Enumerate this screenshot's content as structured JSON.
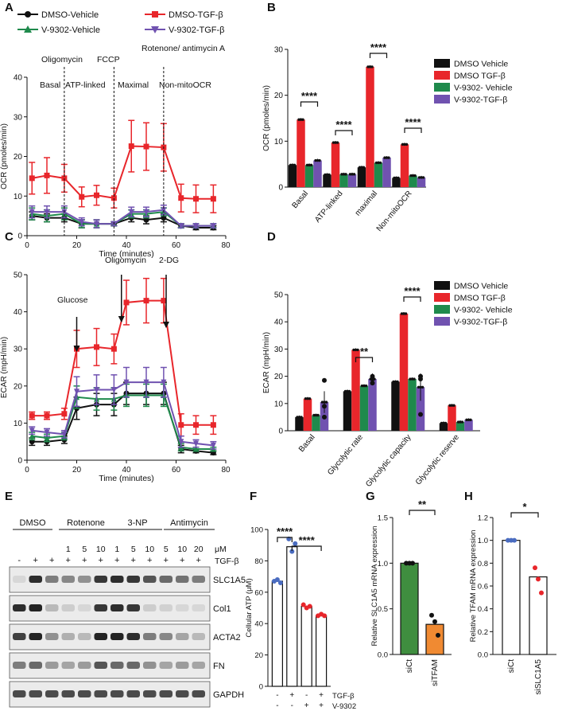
{
  "colors": {
    "black": "#111111",
    "red": "#e8262b",
    "green": "#1f8a4c",
    "purple": "#7052b0",
    "blue": "#4a6cc0",
    "orange": "#f08a32",
    "darkgreen": "#3f8e3f"
  },
  "chart_data": [
    {
      "panel": "A",
      "type": "line",
      "xlabel": "Time (minutes)",
      "ylabel": "OCR (pmoles/min)",
      "ylim": [
        0,
        40
      ],
      "xlim": [
        0,
        80
      ],
      "yticks": [
        0,
        10,
        20,
        30,
        40
      ],
      "xticks": [
        0,
        20,
        40,
        60,
        80
      ],
      "legend": [
        "DMSO-Vehicle",
        "DMSO-TGF-β",
        "V-9302-Vehicle",
        "V-9302-TGF-β"
      ],
      "phases": [
        "Basal",
        "ATP-linked",
        "Maximal",
        "Non-mitoOCR"
      ],
      "injections": [
        "Oligomycin",
        "FCCP",
        "Rotenone/ antimycin A"
      ],
      "x": [
        2,
        8,
        15,
        22,
        28,
        35,
        42,
        48,
        55,
        62,
        68,
        75
      ],
      "series": [
        {
          "name": "DMSO-Vehicle",
          "color": "#111111",
          "marker": "circle",
          "values": [
            5,
            4.5,
            4.5,
            3,
            3,
            3,
            4.5,
            4,
            4.5,
            2.5,
            2,
            2
          ],
          "err": [
            1,
            1,
            1,
            1,
            1,
            0.5,
            1,
            1,
            1,
            0.5,
            0.5,
            0.5
          ]
        },
        {
          "name": "DMSO-TGF-β",
          "color": "#e8262b",
          "marker": "square",
          "values": [
            14.5,
            15.2,
            14.5,
            9.8,
            10.2,
            9.5,
            22.6,
            22.5,
            22.3,
            9.5,
            9.3,
            9.3
          ],
          "err": [
            4,
            4.5,
            3.5,
            2.5,
            2.5,
            2.5,
            6.5,
            6,
            6,
            3.5,
            3.5,
            3.5
          ]
        },
        {
          "name": "V-9302-Vehicle",
          "color": "#1f8a4c",
          "marker": "triangle",
          "values": [
            5.5,
            5,
            5.5,
            3,
            3,
            3,
            5.5,
            5.5,
            6,
            2.5,
            2.5,
            2.5
          ],
          "err": [
            1.5,
            1.5,
            1.5,
            1,
            1,
            0.5,
            1,
            1,
            1,
            0.5,
            0.5,
            0.5
          ]
        },
        {
          "name": "V-9302-TGF-β",
          "color": "#7052b0",
          "marker": "tri-down",
          "values": [
            6,
            6,
            6,
            3.5,
            3,
            3,
            6,
            6,
            6.5,
            2.5,
            2.5,
            2.5
          ],
          "err": [
            1.5,
            1.5,
            1.5,
            1,
            1,
            0.5,
            1.2,
            1.2,
            1.2,
            0.5,
            0.5,
            0.5
          ]
        }
      ]
    },
    {
      "panel": "B",
      "type": "bar",
      "ylabel": "OCR (pmoles/min)",
      "ylim": [
        0,
        30
      ],
      "yticks": [
        0,
        10,
        20,
        30
      ],
      "categories": [
        "Basal",
        "ATP-linked",
        "maximal",
        "Non-mitoOCR"
      ],
      "legend": [
        "DMSO Vehicle",
        "DMSO TGF-β",
        "V-9302- Vehicle",
        "V-9302-TGF-β"
      ],
      "series": [
        {
          "name": "DMSO Vehicle",
          "color": "#111111",
          "values": [
            4.8,
            2.7,
            4.3,
            2.0
          ]
        },
        {
          "name": "DMSO TGF-β",
          "color": "#e8262b",
          "values": [
            14.7,
            9.7,
            26.2,
            9.3
          ]
        },
        {
          "name": "V-9302- Vehicle",
          "color": "#1f8a4c",
          "values": [
            4.8,
            2.8,
            5.3,
            2.5
          ]
        },
        {
          "name": "V-9302-TGF-β",
          "color": "#7052b0",
          "values": [
            5.8,
            2.8,
            6.4,
            2.1
          ]
        }
      ],
      "significance": [
        {
          "category": 0,
          "label": "****"
        },
        {
          "category": 1,
          "label": "****"
        },
        {
          "category": 2,
          "label": "****"
        },
        {
          "category": 3,
          "label": "****"
        }
      ]
    },
    {
      "panel": "C",
      "type": "line",
      "xlabel": "Time (minutes)",
      "ylabel": "ECAR (mpH/min)",
      "ylim": [
        0,
        50
      ],
      "xlim": [
        0,
        80
      ],
      "yticks": [
        0,
        10,
        20,
        30,
        40,
        50
      ],
      "xticks": [
        0,
        20,
        40,
        60,
        80
      ],
      "injections": [
        "Glucose",
        "Oligomycin",
        "2-DG"
      ],
      "x": [
        2,
        8,
        15,
        20,
        28,
        35,
        40,
        48,
        55,
        62,
        68,
        75
      ],
      "series": [
        {
          "name": "DMSO-Vehicle",
          "color": "#111111",
          "values": [
            5,
            5,
            5.5,
            14,
            15,
            15,
            18,
            18,
            18,
            3,
            2.5,
            2
          ],
          "err": [
            1,
            1,
            1,
            3,
            3,
            3,
            3,
            3,
            3,
            1,
            0.5,
            0.5
          ]
        },
        {
          "name": "DMSO-TGF-β",
          "color": "#e8262b",
          "values": [
            12,
            12,
            12.5,
            30,
            30.5,
            30,
            42.5,
            43,
            43,
            9.5,
            9.5,
            9.5
          ],
          "err": [
            1,
            1,
            1.5,
            5,
            5,
            4,
            6,
            6,
            6,
            3,
            2.5,
            2.5
          ]
        },
        {
          "name": "V-9302-Vehicle",
          "color": "#1f8a4c",
          "values": [
            6.5,
            6,
            6.5,
            17,
            16.5,
            16.5,
            17.5,
            17.5,
            17.5,
            3.5,
            3,
            3
          ],
          "err": [
            1,
            1,
            1,
            3,
            3,
            3,
            3,
            3,
            3,
            1,
            0.5,
            0.5
          ]
        },
        {
          "name": "V-9302-TGF-β",
          "color": "#7052b0",
          "values": [
            8,
            7.5,
            7,
            18.5,
            19,
            19,
            21,
            21,
            21,
            5,
            4.5,
            4
          ],
          "err": [
            1,
            1,
            1,
            4,
            4,
            4,
            4,
            4,
            4,
            1.5,
            1,
            1
          ]
        }
      ]
    },
    {
      "panel": "D",
      "type": "bar",
      "ylabel": "ECAR (mpH/min)",
      "ylim": [
        0,
        50
      ],
      "yticks": [
        0,
        10,
        20,
        30,
        40,
        50
      ],
      "categories": [
        "Basal",
        "Glycolytic rate",
        "Glycolytic capacity",
        "Glycolytic reserve"
      ],
      "legend": [
        "DMSO Vehicle",
        "DMSO TGF-β",
        "V-9302- Vehicle",
        "V-9302-TGF-β"
      ],
      "series": [
        {
          "name": "DMSO Vehicle",
          "color": "#111111",
          "values": [
            5.0,
            14.5,
            18.0,
            2.8
          ]
        },
        {
          "name": "DMSO TGF-β",
          "color": "#e8262b",
          "values": [
            11.8,
            29.7,
            43.0,
            9.3
          ]
        },
        {
          "name": "V-9302- Vehicle",
          "color": "#1f8a4c",
          "values": [
            5.7,
            16.5,
            19.0,
            3.2
          ]
        },
        {
          "name": "V-9302-TGF-β",
          "color": "#7052b0",
          "values": [
            10.5,
            19.0,
            16.0,
            4.0
          ]
        }
      ],
      "significance": [
        {
          "category": 1,
          "label": "**"
        },
        {
          "category": 2,
          "label": "****"
        }
      ]
    },
    {
      "panel": "F",
      "type": "bar",
      "ylabel": "Cellular ATP (μM)",
      "ylim": [
        0,
        100
      ],
      "yticks": [
        0,
        20,
        40,
        60,
        80,
        100
      ],
      "categories": [
        "1",
        "2",
        "3",
        "4"
      ],
      "row_labels": [
        "TGF-β",
        "V-9302"
      ],
      "tgf": [
        "-",
        "+",
        "-",
        "+"
      ],
      "v9302": [
        "-",
        "-",
        "+",
        "+"
      ],
      "values": [
        67,
        89,
        51,
        45
      ],
      "point_colors": [
        "#4a6cc0",
        "#4a6cc0",
        "#e8262b",
        "#e8262b"
      ],
      "significance": [
        {
          "from": 0,
          "to": 1,
          "label": "****"
        },
        {
          "from": 1,
          "to": 3,
          "label": "****"
        }
      ]
    },
    {
      "panel": "G",
      "type": "bar",
      "ylabel": "Relative SLC1A5 mRNA expression",
      "ylim": [
        0,
        1.5
      ],
      "yticks": [
        0.0,
        0.5,
        1.0,
        1.5
      ],
      "categories": [
        "siCt",
        "siTFAM"
      ],
      "values": [
        1.0,
        0.33
      ],
      "colors": [
        "#3f8e3f",
        "#f08a32"
      ],
      "significance": [
        {
          "from": 0,
          "to": 1,
          "label": "**"
        }
      ]
    },
    {
      "panel": "H",
      "type": "bar",
      "ylabel": "Relative TFAM mRNA expression",
      "ylim": [
        0,
        1.2
      ],
      "yticks": [
        0.0,
        0.2,
        0.4,
        0.6,
        0.8,
        1.0,
        1.2
      ],
      "categories": [
        "siCt",
        "siSLC1A5"
      ],
      "values": [
        1.0,
        0.68
      ],
      "colors": [
        "#ffffff",
        "#ffffff"
      ],
      "significance": [
        {
          "from": 0,
          "to": 1,
          "label": "*"
        }
      ]
    }
  ],
  "labels": {
    "A": "A",
    "B": "B",
    "C": "C",
    "D": "D",
    "E": "E",
    "F": "F",
    "G": "G",
    "H": "H"
  },
  "blot": {
    "groups": [
      "DMSO",
      "Rotenone",
      "3-NP",
      "Antimycin"
    ],
    "doses": [
      "1",
      "5",
      "10",
      "1",
      "5",
      "10",
      "5",
      "10",
      "20"
    ],
    "unit": "μM",
    "tgf_label": "TGF-β",
    "tgf_row": [
      "-",
      "+",
      "+",
      "+",
      "+",
      "+",
      "+",
      "+",
      "+",
      "+",
      "+",
      "+"
    ],
    "proteins": [
      "SLC1A5",
      "Col1",
      "ACTA2",
      "FN",
      "GAPDH"
    ]
  }
}
